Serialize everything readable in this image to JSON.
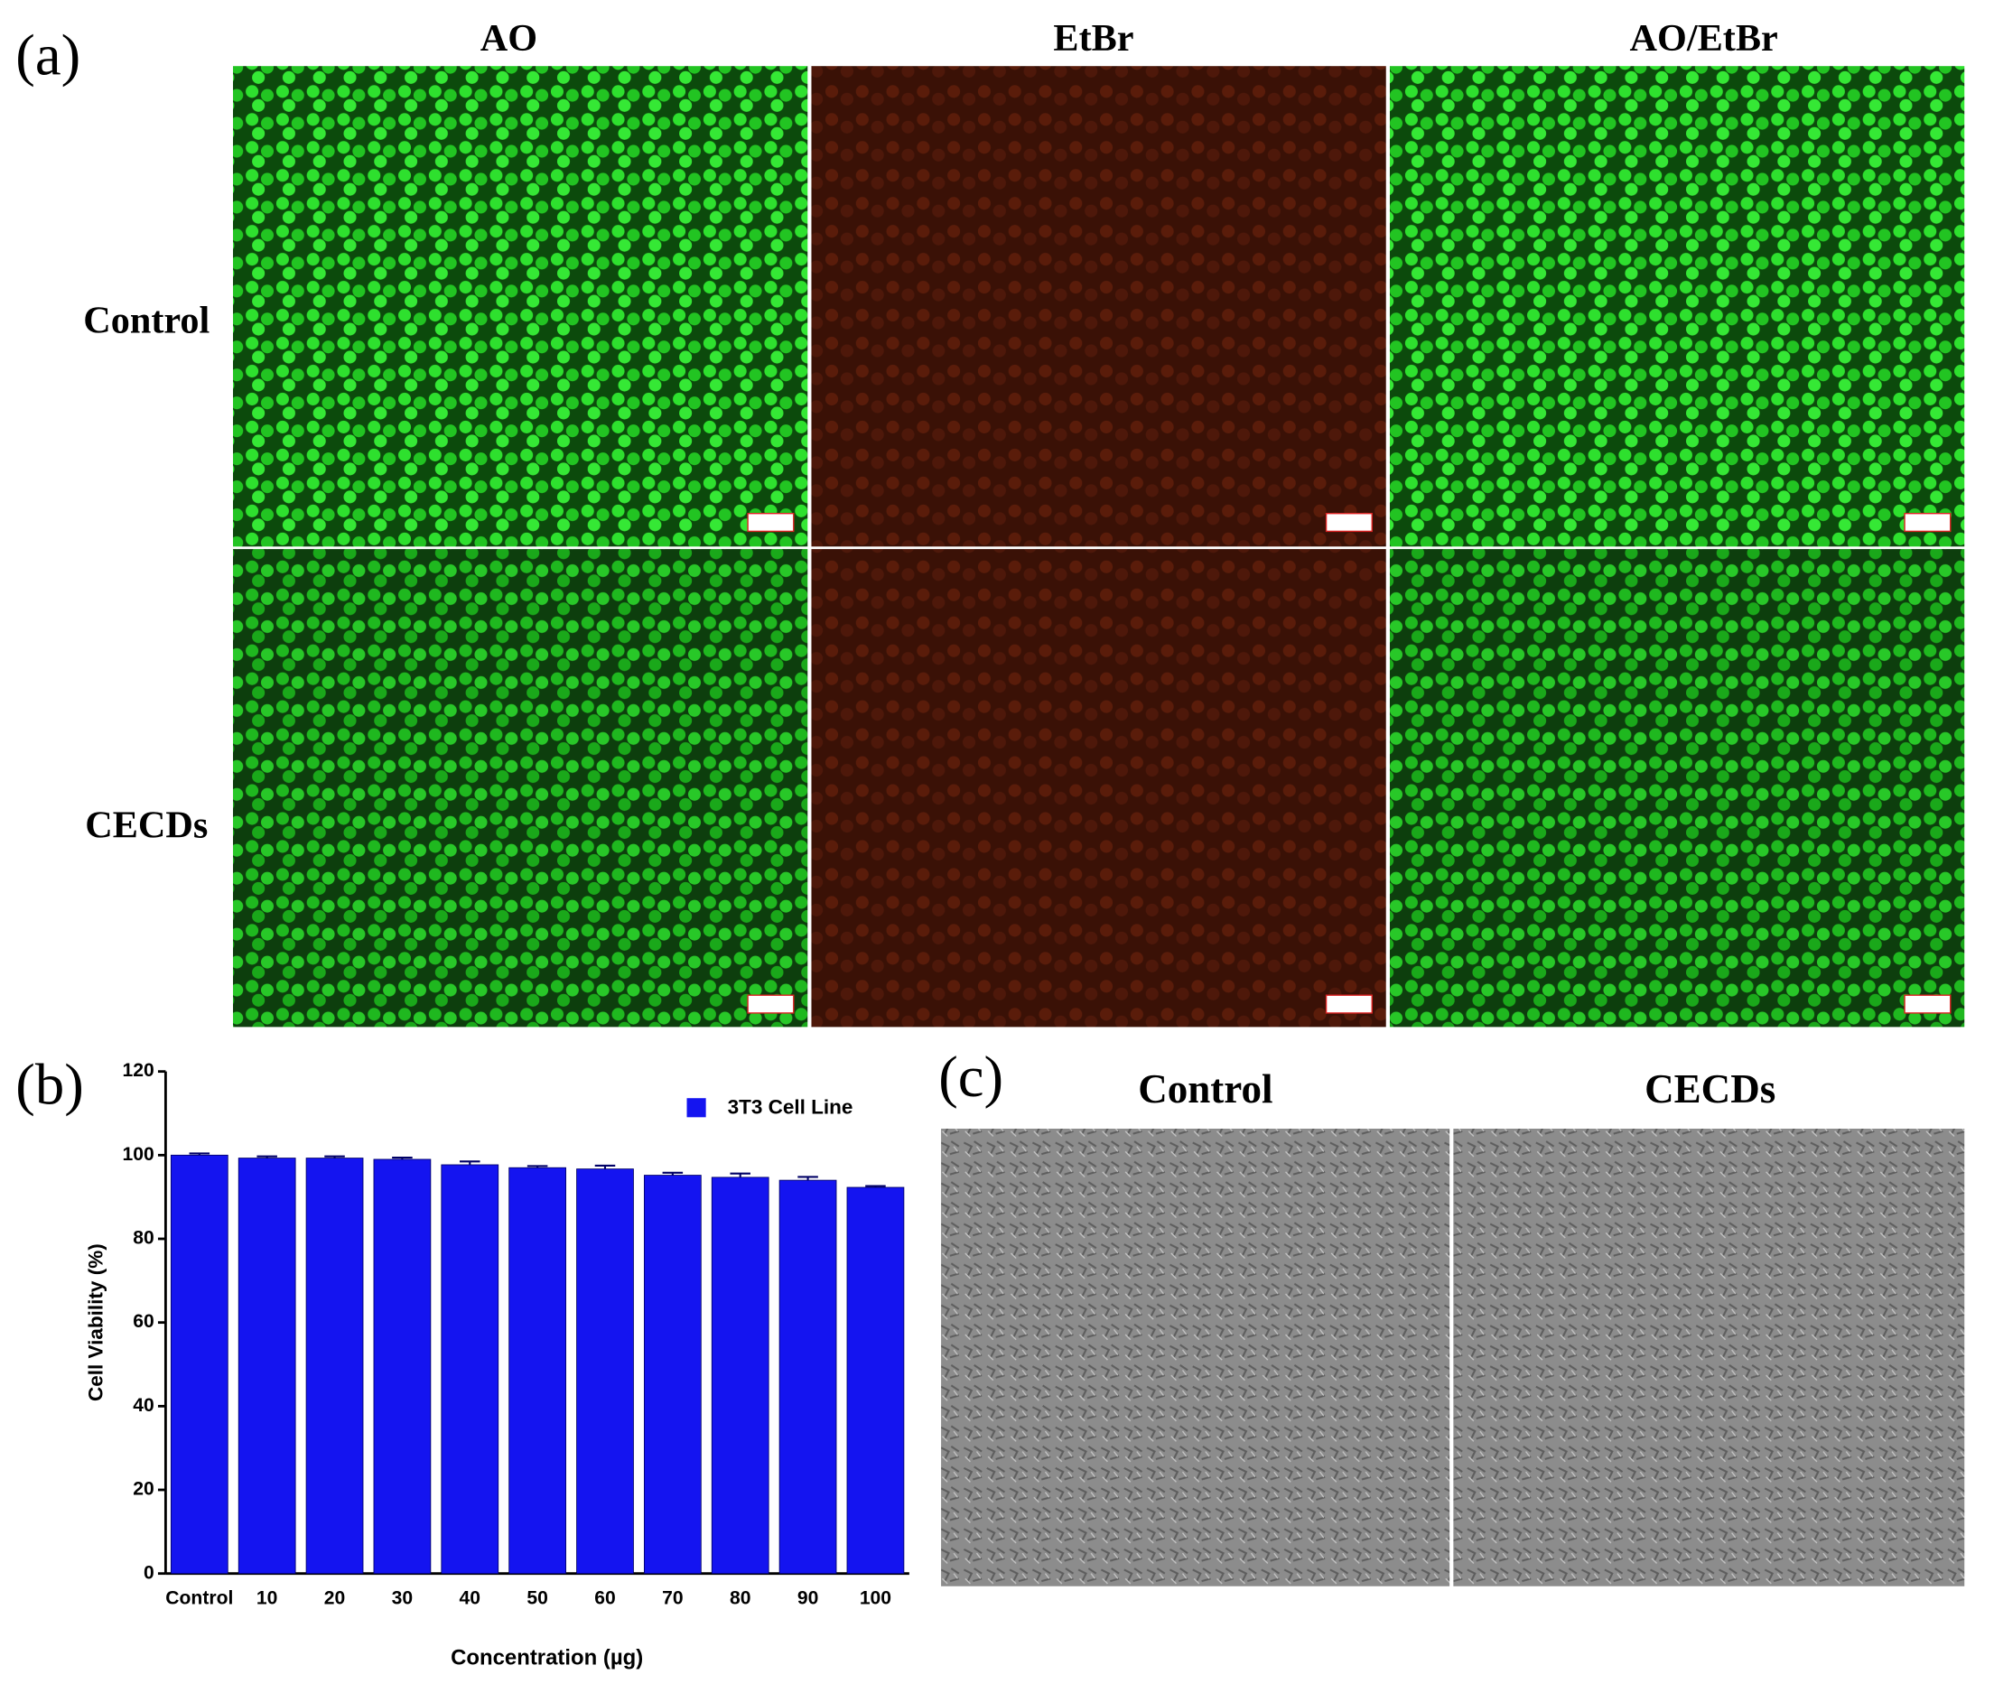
{
  "figure": {
    "panel_a": {
      "label": "(a)",
      "columns": [
        "AO",
        "EtBr",
        "AO/EtBr"
      ],
      "rows": [
        "Control",
        "CECDs"
      ]
    },
    "panel_b": {
      "label": "(b)"
    },
    "panel_c": {
      "label": "(c)",
      "columns": [
        "Control",
        "CECDs"
      ]
    }
  },
  "chart_data": {
    "type": "bar",
    "xlabel": "Concentration (µg)",
    "ylabel": "Cell Viability (%)",
    "categories": [
      "Control",
      "10",
      "20",
      "30",
      "40",
      "50",
      "60",
      "70",
      "80",
      "90",
      "100"
    ],
    "series": [
      {
        "name": "3T3 Cell Line",
        "color": "#1414f0",
        "values": [
          100,
          99.3,
          99.3,
          99,
          97.7,
          97,
          96.7,
          95.2,
          94.7,
          94,
          92.3
        ],
        "errors": [
          0.4,
          0.4,
          0.4,
          0.4,
          0.8,
          0.4,
          0.8,
          0.6,
          0.9,
          0.8,
          0.3
        ]
      }
    ],
    "ylim": [
      0,
      120
    ],
    "yticks": [
      0,
      20,
      40,
      60,
      80,
      100,
      120
    ],
    "legend": "upper right",
    "grid": false
  }
}
